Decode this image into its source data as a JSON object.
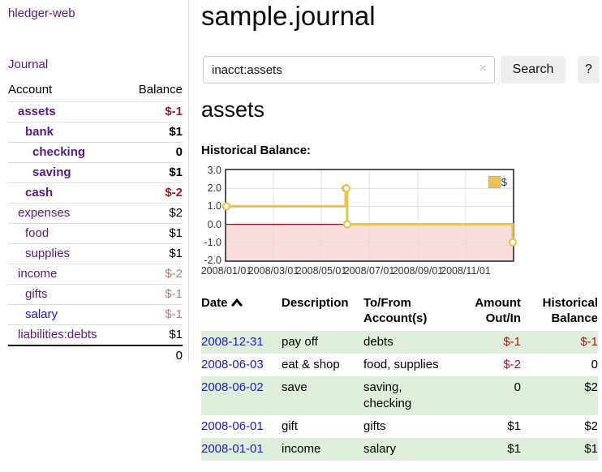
{
  "sidebar": {
    "brand": "hledger-web",
    "nav_journal": "Journal",
    "accounts_table": {
      "headers": {
        "account": "Account",
        "balance": "Balance"
      },
      "rows": [
        {
          "name": "assets",
          "depth": 0,
          "bold": true,
          "balance": "$-1",
          "bal_bold": true,
          "bal_color": "neg-strong"
        },
        {
          "name": "bank",
          "depth": 1,
          "bold": true,
          "balance": "$1",
          "bal_bold": true,
          "bal_color": ""
        },
        {
          "name": "checking",
          "depth": 2,
          "bold": true,
          "balance": "0",
          "bal_bold": true,
          "bal_color": ""
        },
        {
          "name": "saving",
          "depth": 2,
          "bold": true,
          "balance": "$1",
          "bal_bold": true,
          "bal_color": ""
        },
        {
          "name": "cash",
          "depth": 1,
          "bold": true,
          "balance": "$-2",
          "bal_bold": true,
          "bal_color": "neg-strong"
        },
        {
          "name": "expenses",
          "depth": 0,
          "bold": false,
          "balance": "$2",
          "bal_bold": false,
          "bal_color": ""
        },
        {
          "name": "food",
          "depth": 1,
          "bold": false,
          "balance": "$1",
          "bal_bold": false,
          "bal_color": ""
        },
        {
          "name": "supplies",
          "depth": 1,
          "bold": false,
          "balance": "$1",
          "bal_bold": false,
          "bal_color": ""
        },
        {
          "name": "income",
          "depth": 0,
          "bold": false,
          "balance": "$-2",
          "bal_bold": false,
          "bal_color": "neg-soft"
        },
        {
          "name": "gifts",
          "depth": 1,
          "bold": false,
          "balance": "$-1",
          "bal_bold": false,
          "bal_color": "neg-soft"
        },
        {
          "name": "salary",
          "depth": 1,
          "bold": false,
          "balance": "$-1",
          "bal_bold": false,
          "bal_color": "neg-soft",
          "link_color": "blue"
        },
        {
          "name": "liabilities:debts",
          "depth": 0,
          "bold": false,
          "balance": "$1",
          "bal_bold": false,
          "bal_color": ""
        }
      ],
      "total": "0"
    }
  },
  "header": {
    "title": "sample.journal"
  },
  "search": {
    "value": "inacct:assets",
    "clear_icon": "×",
    "search_label": "Search",
    "help_label": "?"
  },
  "account_page": {
    "heading": "assets",
    "chart_title": "Historical Balance:"
  },
  "chart_data": {
    "type": "line",
    "style": "step-after",
    "title": "Historical Balance:",
    "legend": [
      {
        "label": "$",
        "color": "#e8c34f"
      }
    ],
    "points": [
      {
        "date": "2008-01-01",
        "value": 1
      },
      {
        "date": "2008-06-01",
        "value": 2
      },
      {
        "date": "2008-06-02",
        "value": 2
      },
      {
        "date": "2008-06-03",
        "value": 0
      },
      {
        "date": "2008-12-31",
        "value": -1
      }
    ],
    "ylim": [
      -2,
      3
    ],
    "yticks": [
      3.0,
      2.0,
      1.0,
      0.0,
      -1.0,
      -2.0
    ],
    "x_start": "2008-01-01",
    "x_end": "2008-12-31",
    "xticks": [
      {
        "label": "2008/01/01",
        "date": "2008-01-01"
      },
      {
        "label": "2008/03/01",
        "date": "2008-03-01"
      },
      {
        "label": "2008/05/01",
        "date": "2008-05-01"
      },
      {
        "label": "2008/07/01",
        "date": "2008-07-01"
      },
      {
        "label": "2008/09/01",
        "date": "2008-09-01"
      },
      {
        "label": "2008/11/01",
        "date": "2008-11-01"
      }
    ],
    "grid": true,
    "line_color": "#e8c34f",
    "negative_fill": "#fadcdc",
    "zero_line_color": "#8c1717"
  },
  "register": {
    "headers": {
      "date": "Date",
      "description": "Description",
      "accounts": "To/From Account(s)",
      "amount": "Amount Out/In",
      "balance": "Historical Balance"
    },
    "sort": {
      "column": "date",
      "direction": "ascending"
    },
    "rows": [
      {
        "date": "2008-12-31",
        "description": "pay off",
        "accounts": "debts",
        "amount": "$-1",
        "amount_neg": true,
        "balance": "$-1",
        "balance_neg": true
      },
      {
        "date": "2008-06-03",
        "description": "eat & shop",
        "accounts": "food, supplies",
        "amount": "$-2",
        "amount_neg": true,
        "balance": "0",
        "balance_neg": false
      },
      {
        "date": "2008-06-02",
        "description": "save",
        "accounts": "saving, checking",
        "amount": "0",
        "amount_neg": false,
        "balance": "$2",
        "balance_neg": false
      },
      {
        "date": "2008-06-01",
        "description": "gift",
        "accounts": "gifts",
        "amount": "$1",
        "amount_neg": false,
        "balance": "$2",
        "balance_neg": false
      },
      {
        "date": "2008-01-01",
        "description": "income",
        "accounts": "salary",
        "amount": "$1",
        "amount_neg": false,
        "balance": "$1",
        "balance_neg": false
      }
    ]
  },
  "colors": {
    "link_purple": "#551a8b",
    "link_blue": "#1a1ad0",
    "negative_strong": "#9b1b1b",
    "negative_soft": "#bd7979",
    "row_stripe_green": "#dfeeda",
    "chart_gold": "#e8c34f"
  }
}
